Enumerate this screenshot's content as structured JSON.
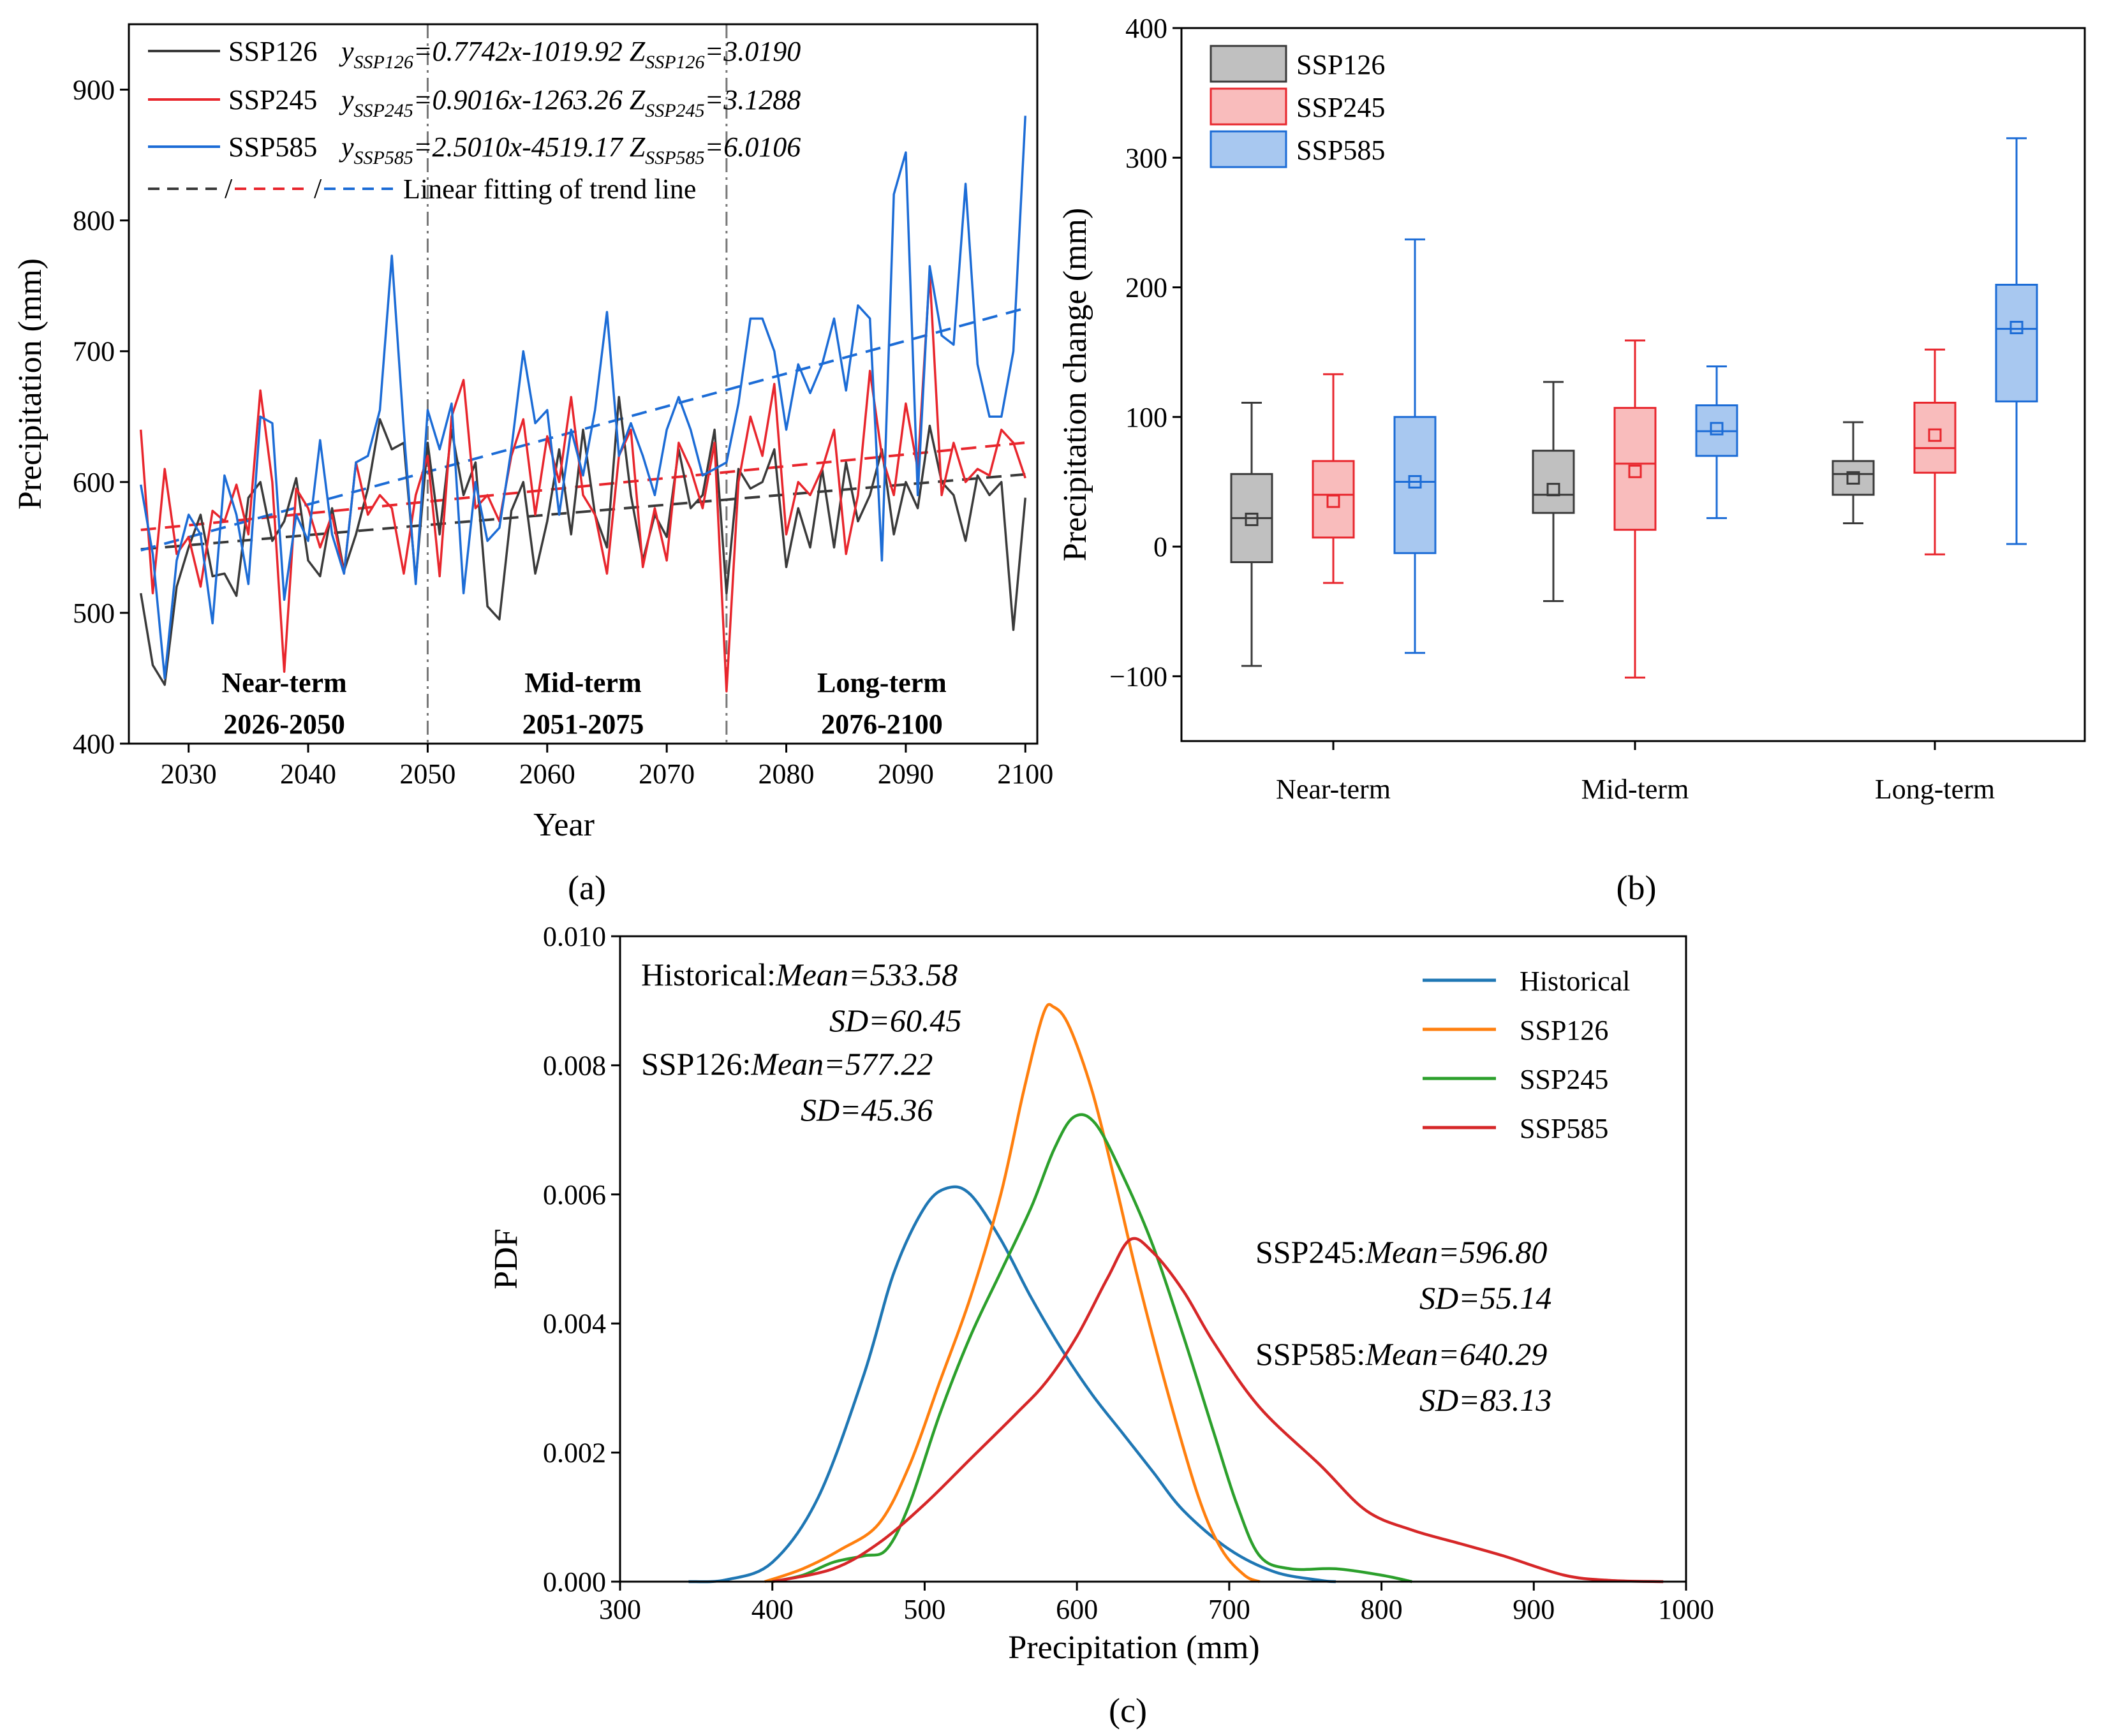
{
  "chart_data": [
    {
      "panel": "(a)",
      "type": "line",
      "xlabel": "Year",
      "ylabel": "Precipitation (mm)",
      "xlim": [
        2025,
        2101
      ],
      "ylim": [
        400,
        950
      ],
      "xticks": [
        2030,
        2040,
        2050,
        2060,
        2070,
        2080,
        2090,
        2100
      ],
      "yticks": [
        400,
        500,
        600,
        700,
        800,
        900
      ],
      "x": [
        2026,
        2027,
        2028,
        2029,
        2030,
        2031,
        2032,
        2033,
        2034,
        2035,
        2036,
        2037,
        2038,
        2039,
        2040,
        2041,
        2042,
        2043,
        2044,
        2045,
        2046,
        2047,
        2048,
        2049,
        2050,
        2051,
        2052,
        2053,
        2054,
        2055,
        2056,
        2057,
        2058,
        2059,
        2060,
        2061,
        2062,
        2063,
        2064,
        2065,
        2066,
        2067,
        2068,
        2069,
        2070,
        2071,
        2072,
        2073,
        2074,
        2075,
        2076,
        2077,
        2078,
        2079,
        2080,
        2081,
        2082,
        2083,
        2084,
        2085,
        2086,
        2087,
        2088,
        2089,
        2090,
        2091,
        2092,
        2093,
        2094,
        2095,
        2096,
        2097,
        2098,
        2099,
        2100
      ],
      "series": [
        {
          "name": "SSP126",
          "color": "#3a3a3a",
          "values": [
            515,
            460,
            445,
            520,
            550,
            575,
            528,
            530,
            513,
            588,
            600,
            555,
            570,
            603,
            540,
            528,
            580,
            532,
            560,
            595,
            648,
            625,
            630,
            525,
            630,
            560,
            640,
            590,
            615,
            505,
            495,
            578,
            600,
            530,
            570,
            625,
            560,
            640,
            575,
            550,
            665,
            590,
            540,
            575,
            558,
            625,
            580,
            590,
            640,
            515,
            610,
            595,
            600,
            625,
            535,
            580,
            550,
            610,
            550,
            615,
            570,
            590,
            625,
            560,
            600,
            580,
            643,
            600,
            590,
            555,
            605,
            590,
            600,
            487,
            588
          ]
        },
        {
          "name": "SSP245",
          "color": "#e8262d",
          "values": [
            640,
            515,
            610,
            545,
            558,
            520,
            578,
            570,
            598,
            560,
            670,
            600,
            455,
            595,
            580,
            550,
            575,
            530,
            615,
            575,
            590,
            580,
            530,
            590,
            620,
            528,
            650,
            678,
            580,
            590,
            570,
            620,
            648,
            575,
            635,
            600,
            665,
            590,
            575,
            530,
            620,
            640,
            535,
            580,
            540,
            630,
            610,
            580,
            630,
            440,
            600,
            650,
            620,
            675,
            560,
            600,
            590,
            610,
            640,
            545,
            590,
            685,
            620,
            590,
            660,
            610,
            760,
            590,
            630,
            600,
            610,
            605,
            640,
            630,
            603
          ]
        },
        {
          "name": "SSP585",
          "color": "#1c6cd6",
          "values": [
            598,
            545,
            450,
            540,
            575,
            560,
            492,
            605,
            575,
            522,
            650,
            645,
            510,
            575,
            555,
            632,
            560,
            530,
            615,
            620,
            655,
            773,
            640,
            522,
            655,
            625,
            660,
            515,
            600,
            555,
            565,
            625,
            700,
            645,
            655,
            575,
            640,
            605,
            655,
            730,
            620,
            645,
            620,
            590,
            640,
            665,
            640,
            605,
            610,
            615,
            660,
            725,
            725,
            700,
            640,
            690,
            668,
            690,
            725,
            670,
            735,
            725,
            540,
            820,
            852,
            590,
            765,
            712,
            705,
            828,
            690,
            650,
            650,
            700,
            880
          ]
        }
      ],
      "trend_lines": [
        {
          "name": "SSP126",
          "slope": 0.7742,
          "intercept": -1019.92,
          "color": "#3a3a3a"
        },
        {
          "name": "SSP245",
          "slope": 0.9016,
          "intercept": -1263.26,
          "color": "#e8262d"
        },
        {
          "name": "SSP585",
          "slope": 2.501,
          "intercept": -4519.17,
          "color": "#1c6cd6"
        }
      ],
      "vlines": [
        2050,
        2075
      ],
      "legend": [
        {
          "name": "SSP126",
          "sub": "SSP126",
          "slope_txt": "=0.7742x-1019.92",
          "z_txt": "=3.0190"
        },
        {
          "name": "SSP245",
          "sub": "SSP245",
          "slope_txt": "=0.9016x-1263.26",
          "z_txt": "=3.1288"
        },
        {
          "name": "SSP585",
          "sub": "SSP585",
          "slope_txt": "=2.5010x-4519.17",
          "z_txt": "=6.0106"
        }
      ],
      "legend_trend_label": "Linear fitting of trend line",
      "periods": [
        {
          "name": "Near-term",
          "range": "2026-2050"
        },
        {
          "name": "Mid-term",
          "range": "2051-2075"
        },
        {
          "name": "Long-term",
          "range": "2076-2100"
        }
      ]
    },
    {
      "panel": "(b)",
      "type": "box",
      "ylabel": "Precipitation change (mm)",
      "ylim": [
        -150,
        400
      ],
      "yticks": [
        -100,
        0,
        100,
        200,
        300,
        400
      ],
      "categories": [
        "Near-term",
        "Mid-term",
        "Long-term"
      ],
      "series": [
        {
          "name": "SSP126",
          "color": "#3a3a3a",
          "fill": "#c0c0c0",
          "boxes": [
            {
              "min": -92,
              "q1": -12,
              "median": 22,
              "mean": 21,
              "q3": 56,
              "max": 111
            },
            {
              "min": -42,
              "q1": 26,
              "median": 40,
              "mean": 44,
              "q3": 74,
              "max": 127
            },
            {
              "min": 18,
              "q1": 40,
              "median": 56,
              "mean": 53,
              "q3": 66,
              "max": 96
            }
          ]
        },
        {
          "name": "SSP245",
          "color": "#e8262d",
          "fill": "#f9bcbc",
          "boxes": [
            {
              "min": -28,
              "q1": 7,
              "median": 40,
              "mean": 35,
              "q3": 66,
              "max": 133
            },
            {
              "min": -101,
              "q1": 13,
              "median": 64,
              "mean": 58,
              "q3": 107,
              "max": 159
            },
            {
              "min": -6,
              "q1": 57,
              "median": 76,
              "mean": 86,
              "q3": 111,
              "max": 152
            }
          ]
        },
        {
          "name": "SSP585",
          "color": "#1c6cd6",
          "fill": "#a8c8f0",
          "boxes": [
            {
              "min": -82,
              "q1": -5,
              "median": 50,
              "mean": 50,
              "q3": 100,
              "max": 237
            },
            {
              "min": 22,
              "q1": 70,
              "median": 89,
              "mean": 91,
              "q3": 109,
              "max": 139
            },
            {
              "min": 2,
              "q1": 112,
              "median": 168,
              "mean": 169,
              "q3": 202,
              "max": 315
            }
          ]
        }
      ]
    },
    {
      "panel": "(c)",
      "type": "line",
      "xlabel": "Precipitation (mm)",
      "ylabel": "PDF",
      "xlim": [
        300,
        1000
      ],
      "ylim": [
        0,
        0.01
      ],
      "xticks": [
        300,
        400,
        500,
        600,
        700,
        800,
        900,
        1000
      ],
      "yticks": [
        "0.000",
        "0.002",
        "0.004",
        "0.006",
        "0.008",
        "0.010"
      ],
      "series": [
        {
          "name": "Historical",
          "color": "#1f77b4",
          "points": [
            [
              345,
              0
            ],
            [
              370,
              3e-05
            ],
            [
              400,
              0.0003
            ],
            [
              430,
              0.0013
            ],
            [
              460,
              0.0032
            ],
            [
              480,
              0.0048
            ],
            [
              500,
              0.0058
            ],
            [
              515,
              0.0061
            ],
            [
              530,
              0.006
            ],
            [
              550,
              0.0053
            ],
            [
              570,
              0.0044
            ],
            [
              590,
              0.0036
            ],
            [
              610,
              0.0029
            ],
            [
              630,
              0.0023
            ],
            [
              650,
              0.0017
            ],
            [
              670,
              0.0011
            ],
            [
              700,
              0.0005
            ],
            [
              730,
              0.00015
            ],
            [
              760,
              2e-05
            ],
            [
              770,
              0
            ]
          ]
        },
        {
          "name": "SSP126",
          "color": "#ff7f0e",
          "points": [
            [
              395,
              0
            ],
            [
              420,
              0.0002
            ],
            [
              445,
              0.0005
            ],
            [
              470,
              0.0009
            ],
            [
              490,
              0.0018
            ],
            [
              510,
              0.0031
            ],
            [
              530,
              0.0044
            ],
            [
              550,
              0.006
            ],
            [
              565,
              0.0076
            ],
            [
              578,
              0.0088
            ],
            [
              585,
              0.0089
            ],
            [
              595,
              0.0086
            ],
            [
              610,
              0.0076
            ],
            [
              625,
              0.0062
            ],
            [
              640,
              0.0047
            ],
            [
              660,
              0.0029
            ],
            [
              680,
              0.0013
            ],
            [
              695,
              0.0005
            ],
            [
              710,
              0.0001
            ],
            [
              720,
              0
            ]
          ]
        },
        {
          "name": "SSP245",
          "color": "#2ca02c",
          "points": [
            [
              400,
              0
            ],
            [
              420,
              0.0001
            ],
            [
              440,
              0.0003
            ],
            [
              460,
              0.0004
            ],
            [
              475,
              0.0005
            ],
            [
              490,
              0.0012
            ],
            [
              510,
              0.0026
            ],
            [
              530,
              0.0038
            ],
            [
              550,
              0.0048
            ],
            [
              570,
              0.0058
            ],
            [
              585,
              0.0067
            ],
            [
              598,
              0.0072
            ],
            [
              612,
              0.0071
            ],
            [
              630,
              0.0063
            ],
            [
              650,
              0.0052
            ],
            [
              670,
              0.0038
            ],
            [
              690,
              0.0023
            ],
            [
              705,
              0.0012
            ],
            [
              720,
              0.0004
            ],
            [
              740,
              0.0002
            ],
            [
              770,
              0.0002
            ],
            [
              800,
              0.0001
            ],
            [
              820,
              0
            ]
          ]
        },
        {
          "name": "SSP585",
          "color": "#d62728",
          "points": [
            [
              400,
              0
            ],
            [
              440,
              0.0002
            ],
            [
              470,
              0.0006
            ],
            [
              500,
              0.0012
            ],
            [
              530,
              0.0019
            ],
            [
              560,
              0.0026
            ],
            [
              580,
              0.0031
            ],
            [
              600,
              0.0038
            ],
            [
              620,
              0.0047
            ],
            [
              635,
              0.0053
            ],
            [
              650,
              0.0051
            ],
            [
              670,
              0.0045
            ],
            [
              690,
              0.0037
            ],
            [
              720,
              0.0027
            ],
            [
              760,
              0.0018
            ],
            [
              790,
              0.0011
            ],
            [
              820,
              0.0008
            ],
            [
              850,
              0.0006
            ],
            [
              880,
              0.0004
            ],
            [
              920,
              0.0001
            ],
            [
              950,
              2e-05
            ],
            [
              985,
              0
            ]
          ]
        }
      ],
      "annotations": [
        {
          "name": "Historical",
          "mean": "533.58",
          "sd": "60.45"
        },
        {
          "name": "SSP126",
          "mean": "577.22",
          "sd": "45.36"
        },
        {
          "name": "SSP245",
          "mean": "596.80",
          "sd": "55.14"
        },
        {
          "name": "SSP585",
          "mean": "640.29",
          "sd": "83.13"
        }
      ],
      "legend": [
        "Historical",
        "SSP126",
        "SSP245",
        "SSP585"
      ],
      "mean_label": "Mean=",
      "sd_label": "SD="
    }
  ]
}
